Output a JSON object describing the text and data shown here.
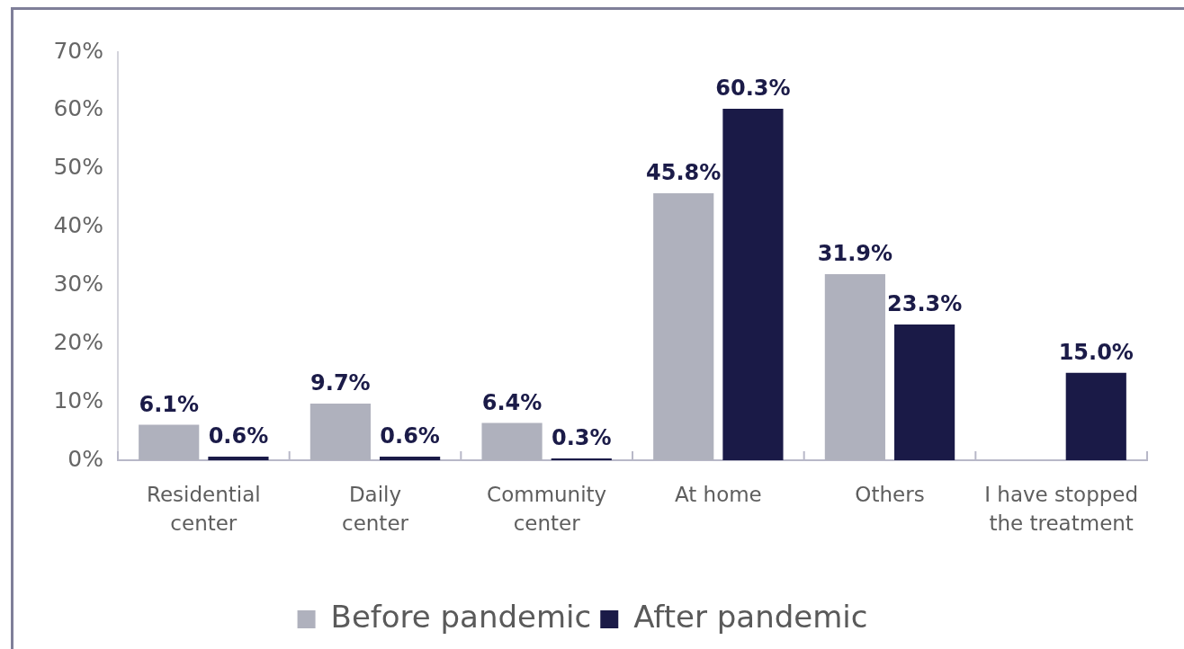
{
  "chart_data": {
    "type": "bar",
    "categories": [
      "Residential center",
      "Daily center",
      "Community center",
      "At home",
      "Others",
      "I have stopped the treatment"
    ],
    "series": [
      {
        "name": "Before pandemic",
        "color": "#afb1bd",
        "values": [
          6.1,
          9.7,
          6.4,
          45.8,
          31.9,
          null
        ],
        "value_labels": [
          "6.1%",
          "9.7%",
          "6.4%",
          "45.8%",
          "31.9%",
          null
        ]
      },
      {
        "name": "After pandemic",
        "color": "#1a1a47",
        "values": [
          0.6,
          0.6,
          0.3,
          60.3,
          23.3,
          15.0
        ],
        "value_labels": [
          "0.6%",
          "0.6%",
          "0.3%",
          "60.3%",
          "23.3%",
          "15.0%"
        ]
      }
    ],
    "ylim": [
      0,
      70
    ],
    "yticks": [
      {
        "value": 0,
        "label": "0%"
      },
      {
        "value": 10,
        "label": "10%"
      },
      {
        "value": 20,
        "label": "20%"
      },
      {
        "value": 30,
        "label": "30%"
      },
      {
        "value": 40,
        "label": "40%"
      },
      {
        "value": 50,
        "label": "50%"
      },
      {
        "value": 60,
        "label": "60%"
      },
      {
        "value": 70,
        "label": "70%"
      }
    ],
    "grid": false,
    "legend": "bottom"
  }
}
